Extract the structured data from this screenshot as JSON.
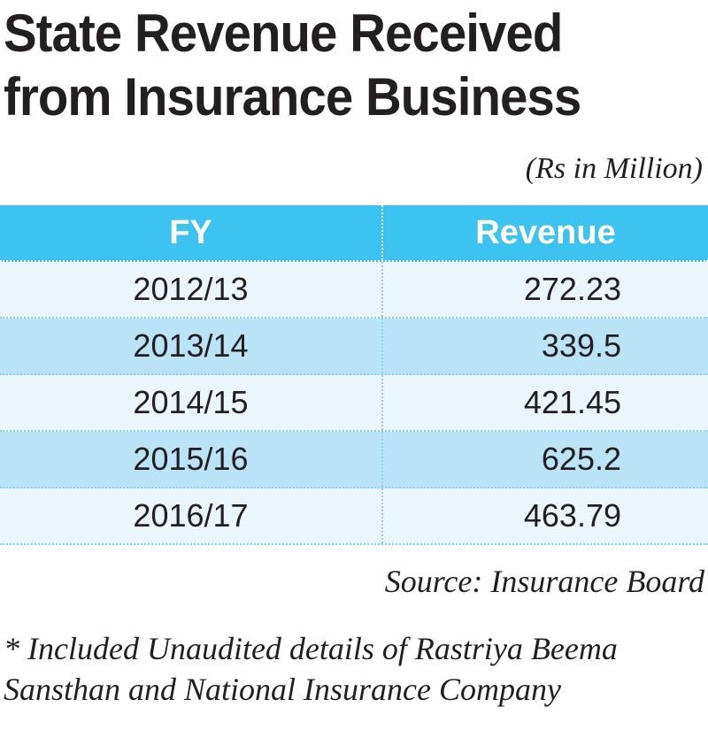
{
  "title_line1": "State Revenue Received",
  "title_line2": "from Insurance Business",
  "unit": "(Rs in Million)",
  "chart_data": {
    "type": "table",
    "title": "State Revenue Received from Insurance Business",
    "unit": "(Rs in Million)",
    "columns": [
      "FY",
      "Revenue"
    ],
    "rows": [
      [
        "2012/13",
        "272.23"
      ],
      [
        "2013/14",
        "339.5"
      ],
      [
        "2014/15",
        "421.45"
      ],
      [
        "2015/16",
        "625.2"
      ],
      [
        "2016/17",
        "463.79"
      ]
    ]
  },
  "source": "Source: Insurance Board",
  "note": "* Included Unaudited details of Rastriya Beema Sansthan and National Insurance Company",
  "colors": {
    "header_bg": "#3cc3ef",
    "row_light": "#eaf5fc",
    "row_dark": "#b9e4f8"
  }
}
